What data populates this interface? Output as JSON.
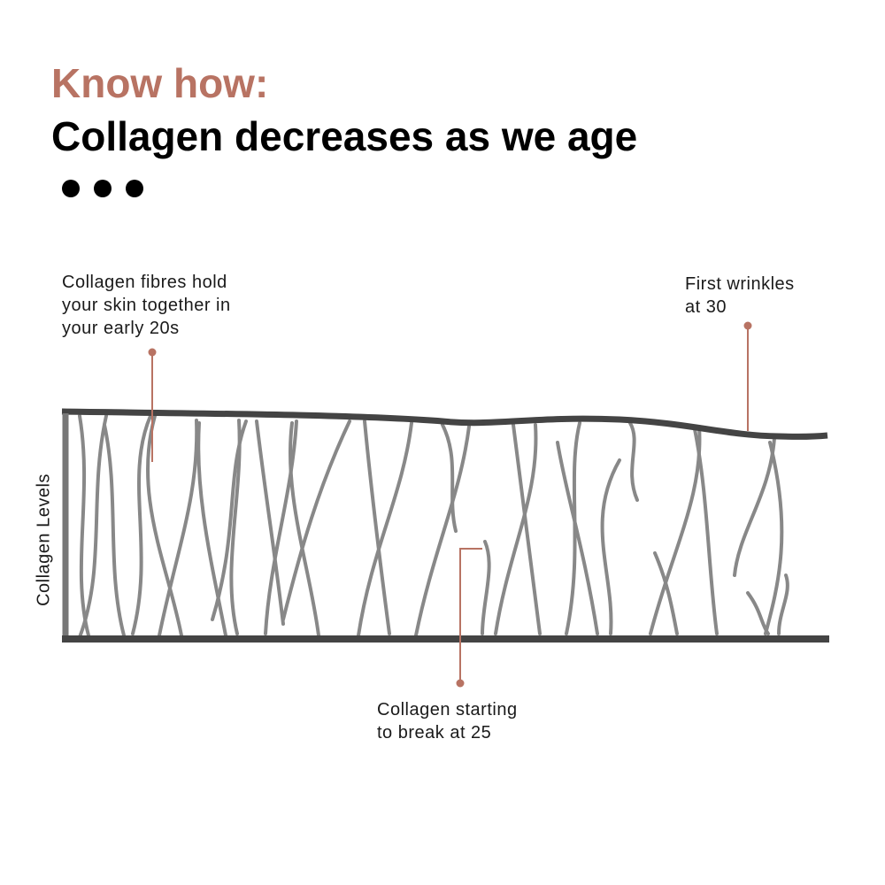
{
  "header": {
    "kicker": "Know how:",
    "title": "Collagen decreases as we age"
  },
  "axis_label": "Collagen Levels",
  "annotations": [
    {
      "lines": [
        "Collagen fibres hold",
        "your skin together in",
        "your early 20s"
      ]
    },
    {
      "lines": [
        "First wrinkles",
        "at 30"
      ]
    },
    {
      "lines": [
        "Collagen starting",
        "to break at 25"
      ]
    }
  ]
}
